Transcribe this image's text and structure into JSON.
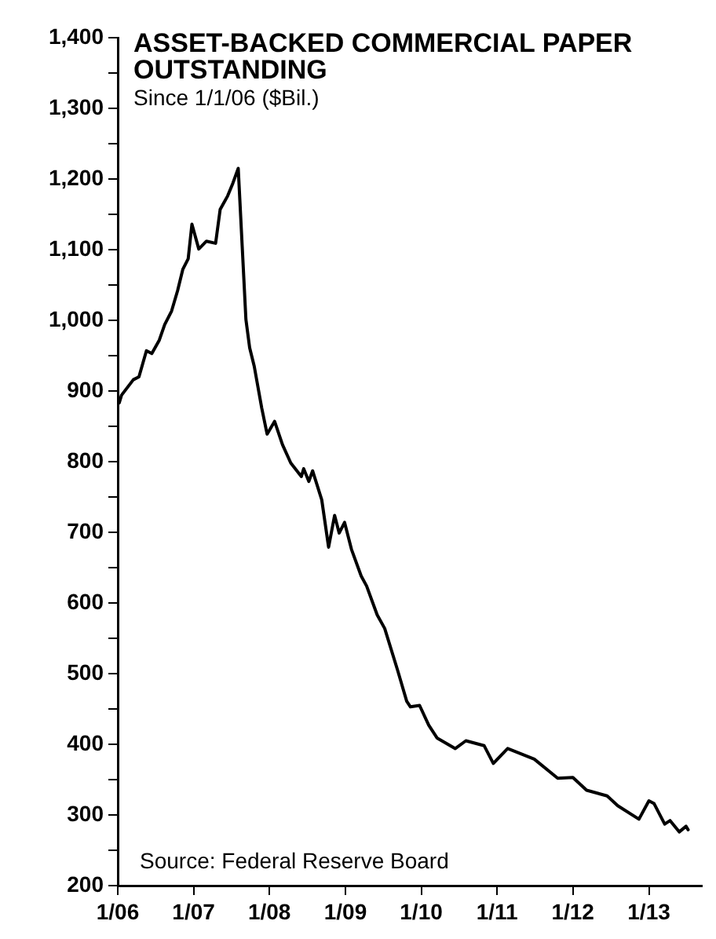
{
  "chart_data": {
    "type": "line",
    "title": "ASSET-BACKED COMMERCIAL PAPER OUTSTANDING",
    "subtitle": "Since 1/1/06 ($Bil.)",
    "annotations": [
      "Source: Federal Reserve Board"
    ],
    "xlim": [
      "2006-01-01",
      "2013-09-13"
    ],
    "xticks": [
      {
        "value": "2006-01-01",
        "label": "1/06"
      },
      {
        "value": "2007-01-01",
        "label": "1/07"
      },
      {
        "value": "2008-01-01",
        "label": "1/08"
      },
      {
        "value": "2009-01-01",
        "label": "1/09"
      },
      {
        "value": "2010-01-01",
        "label": "1/10"
      },
      {
        "value": "2011-01-01",
        "label": "1/11"
      },
      {
        "value": "2012-01-01",
        "label": "1/12"
      },
      {
        "value": "2013-01-01",
        "label": "1/13"
      }
    ],
    "ylim": [
      200,
      1400
    ],
    "yticks": [
      {
        "value": 200,
        "label": "200"
      },
      {
        "value": 250,
        "label": null
      },
      {
        "value": 300,
        "label": "300"
      },
      {
        "value": 350,
        "label": null
      },
      {
        "value": 400,
        "label": "400"
      },
      {
        "value": 450,
        "label": null
      },
      {
        "value": 500,
        "label": "500"
      },
      {
        "value": 550,
        "label": null
      },
      {
        "value": 600,
        "label": "600"
      },
      {
        "value": 650,
        "label": null
      },
      {
        "value": 700,
        "label": "700"
      },
      {
        "value": 750,
        "label": null
      },
      {
        "value": 800,
        "label": "800"
      },
      {
        "value": 850,
        "label": null
      },
      {
        "value": 900,
        "label": "900"
      },
      {
        "value": 950,
        "label": null
      },
      {
        "value": 1000,
        "label": "1,000"
      },
      {
        "value": 1050,
        "label": null
      },
      {
        "value": 1100,
        "label": "1,100"
      },
      {
        "value": 1150,
        "label": null
      },
      {
        "value": 1200,
        "label": "1,200"
      },
      {
        "value": 1250,
        "label": null
      },
      {
        "value": 1300,
        "label": "1,300"
      },
      {
        "value": 1350,
        "label": null
      },
      {
        "value": 1400,
        "label": "1,400"
      }
    ],
    "grid": false,
    "legend": false,
    "marker": "none",
    "line_style": "solid",
    "series": [
      {
        "color": "#000000",
        "x": [
          "2006-01-08",
          "2006-01-19",
          "2006-03-17",
          "2006-04-13",
          "2006-05-19",
          "2006-06-14",
          "2006-07-20",
          "2006-08-15",
          "2006-09-17",
          "2006-10-16",
          "2006-11-10",
          "2006-12-06",
          "2006-12-24",
          "2007-01-26",
          "2007-03-04",
          "2007-04-17",
          "2007-05-09",
          "2007-06-14",
          "2007-07-09",
          "2007-08-04",
          "2007-08-23",
          "2007-09-10",
          "2007-09-28",
          "2007-10-20",
          "2007-11-25",
          "2007-12-21",
          "2008-01-26",
          "2008-03-04",
          "2008-04-13",
          "2008-06-03",
          "2008-06-14",
          "2008-07-09",
          "2008-07-27",
          "2008-09-09",
          "2008-10-12",
          "2008-11-10",
          "2008-12-02",
          "2008-12-28",
          "2009-01-30",
          "2009-03-18",
          "2009-04-13",
          "2009-06-03",
          "2009-07-09",
          "2009-09-09",
          "2009-10-23",
          "2009-11-10",
          "2009-12-24",
          "2010-02-06",
          "2010-03-18",
          "2010-06-14",
          "2010-08-04",
          "2010-10-31",
          "2010-12-14",
          "2011-02-21",
          "2011-06-29",
          "2011-10-20",
          "2012-01-01",
          "2012-03-07",
          "2012-06-14",
          "2012-08-04",
          "2012-11-14",
          "2013-01-01",
          "2013-01-26",
          "2013-03-18",
          "2013-04-13",
          "2013-05-27",
          "2013-06-29",
          "2013-07-09"
        ],
        "values": [
          883,
          894,
          916,
          920,
          957,
          953,
          972,
          994,
          1013,
          1042,
          1072,
          1087,
          1136,
          1101,
          1112,
          1109,
          1157,
          1176,
          1194,
          1215,
          1105,
          1001,
          961,
          935,
          876,
          839,
          857,
          824,
          798,
          779,
          790,
          772,
          787,
          746,
          679,
          724,
          699,
          714,
          676,
          638,
          624,
          583,
          564,
          505,
          461,
          453,
          455,
          427,
          409,
          394,
          405,
          398,
          373,
          394,
          379,
          352,
          353,
          335,
          327,
          313,
          294,
          320,
          316,
          287,
          292,
          276,
          284,
          279
        ]
      }
    ]
  }
}
